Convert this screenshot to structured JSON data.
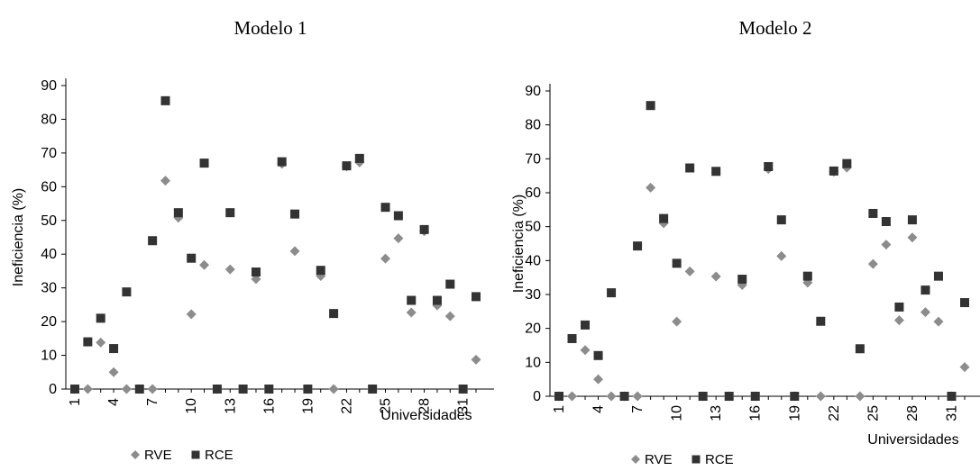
{
  "chart_data": [
    {
      "type": "scatter",
      "title": "Modelo 1",
      "xlabel": "Universidades",
      "ylabel": "Ineficiencia (%)",
      "x": [
        1,
        2,
        3,
        4,
        5,
        6,
        7,
        8,
        9,
        10,
        11,
        12,
        13,
        14,
        15,
        16,
        17,
        18,
        19,
        20,
        21,
        22,
        23,
        24,
        25,
        26,
        27,
        28,
        29,
        30,
        31,
        32
      ],
      "xticks": [
        "1",
        "4",
        "7",
        "10",
        "13",
        "16",
        "19",
        "22",
        "25",
        "28",
        "31"
      ],
      "yticks": [
        "0",
        "10",
        "20",
        "30",
        "40",
        "50",
        "60",
        "70",
        "80",
        "90"
      ],
      "ylim": [
        0,
        90
      ],
      "legend_position": "bottom",
      "series": [
        {
          "name": "RVE",
          "marker": "diamond",
          "color": "#8c8c8c",
          "values": [
            0,
            0,
            13.8,
            5,
            0,
            0,
            0,
            61.8,
            50.8,
            22.2,
            36.8,
            0,
            35.5,
            0,
            32.6,
            0,
            66.8,
            40.9,
            0,
            33.5,
            0,
            66,
            67.2,
            0,
            38.7,
            44.7,
            22.7,
            46.8,
            24.8,
            21.6,
            0,
            8.7
          ]
        },
        {
          "name": "RCE",
          "marker": "square",
          "color": "#333333",
          "values": [
            0,
            14,
            21,
            12,
            28.8,
            0,
            44,
            85.5,
            52.3,
            38.8,
            67,
            0,
            52.3,
            0,
            34.7,
            0,
            67.4,
            51.9,
            0,
            35.2,
            22.4,
            66.2,
            68.4,
            0,
            53.9,
            51.4,
            26.3,
            47.3,
            26.3,
            31.1,
            0,
            27.4
          ]
        }
      ]
    },
    {
      "type": "scatter",
      "title": "Modelo 2",
      "xlabel": "Universidades",
      "ylabel": "Ineficiencia (%)",
      "x": [
        1,
        2,
        3,
        4,
        5,
        6,
        7,
        8,
        9,
        10,
        11,
        12,
        13,
        14,
        15,
        16,
        17,
        18,
        19,
        20,
        21,
        22,
        23,
        24,
        25,
        26,
        27,
        28,
        29,
        30,
        31,
        32
      ],
      "xticks": [
        "1",
        "4",
        "7",
        "10",
        "13",
        "16",
        "19",
        "22",
        "25",
        "28",
        "31"
      ],
      "yticks": [
        "0",
        "10",
        "20",
        "30",
        "40",
        "50",
        "60",
        "70",
        "80",
        "90"
      ],
      "ylim": [
        0,
        90
      ],
      "legend_position": "bottom",
      "series": [
        {
          "name": "RVE",
          "marker": "diamond",
          "color": "#8c8c8c",
          "values": [
            0,
            0,
            13.6,
            5,
            0,
            0,
            0,
            61.5,
            51,
            22,
            36.8,
            0,
            35.3,
            0,
            32.8,
            0,
            67,
            41.3,
            0,
            33.5,
            0,
            66.2,
            67.4,
            0,
            39,
            44.7,
            22.4,
            46.8,
            24.8,
            22,
            0,
            8.6
          ]
        },
        {
          "name": "RCE",
          "marker": "square",
          "color": "#333333",
          "values": [
            0,
            17,
            21,
            12,
            30.5,
            0,
            44.3,
            85.7,
            52.4,
            39.2,
            67.3,
            0,
            66.3,
            0,
            34.5,
            0,
            67.7,
            52,
            0,
            35.4,
            22.1,
            66.4,
            68.6,
            14,
            53.9,
            51.5,
            26.3,
            52,
            31.3,
            35.4,
            0,
            27.6
          ]
        }
      ]
    }
  ]
}
